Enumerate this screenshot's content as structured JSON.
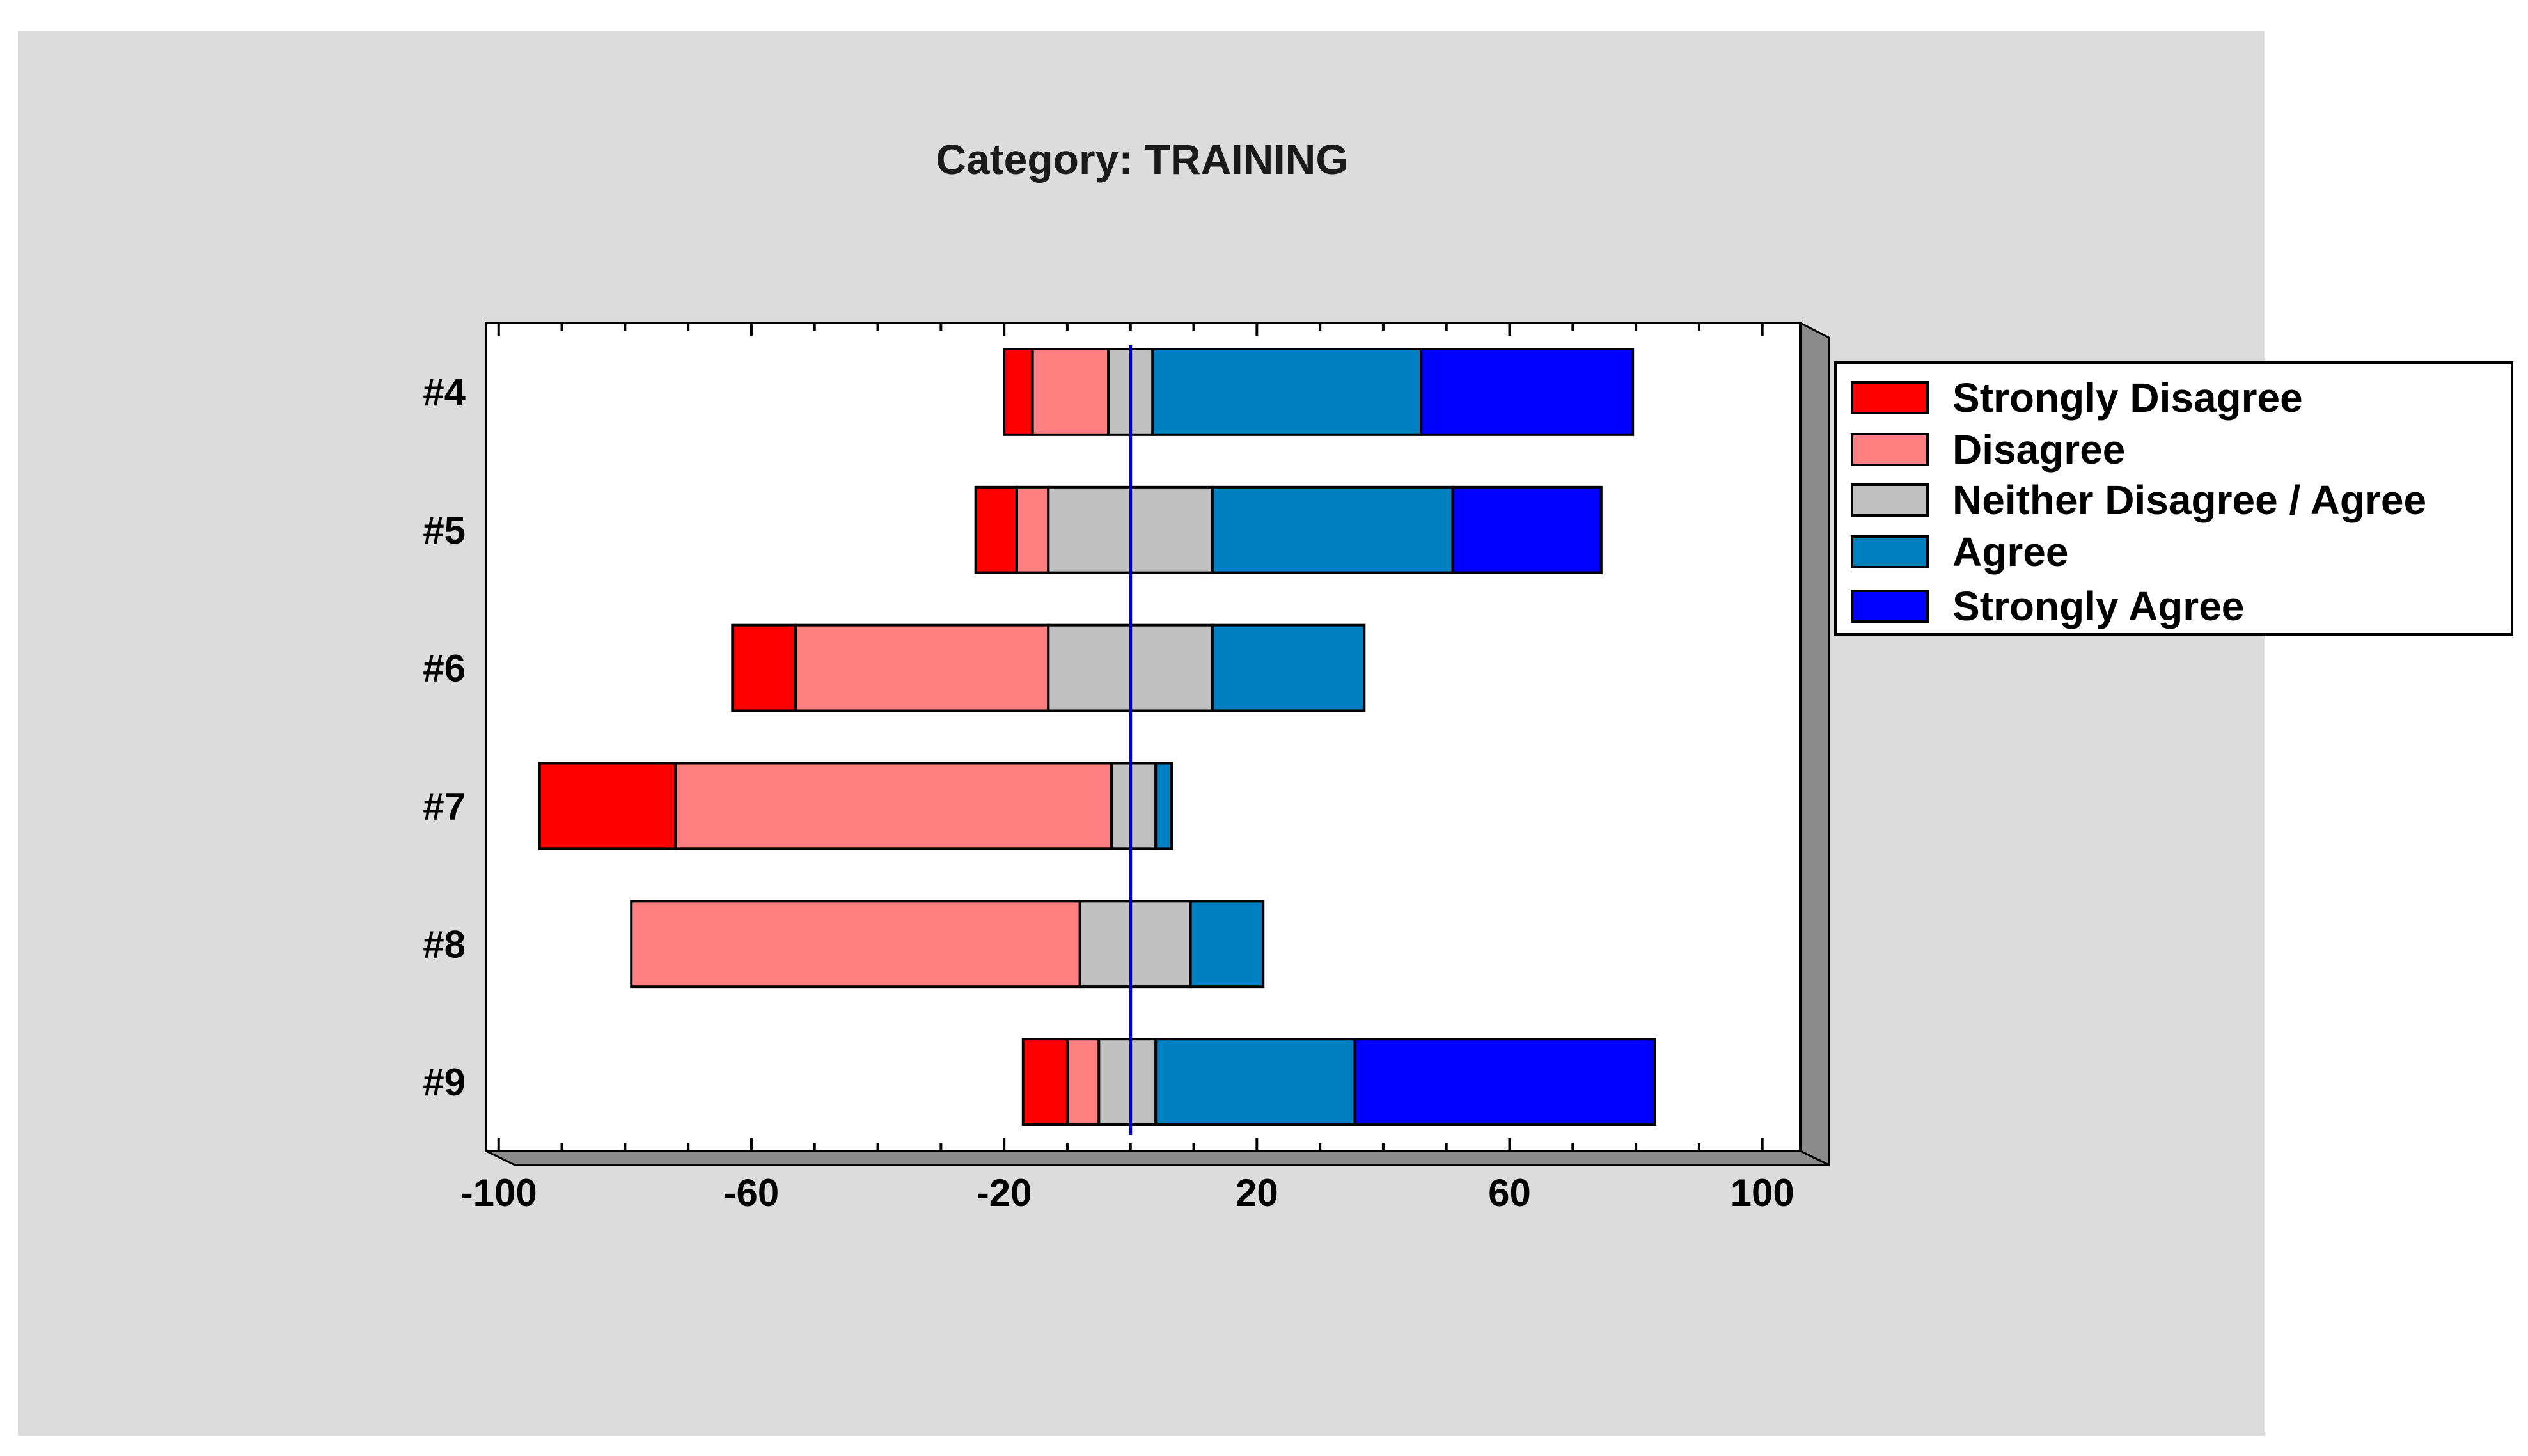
{
  "chart_data": {
    "type": "bar",
    "orientation": "horizontal",
    "stacked": "diverging",
    "title": "Category: TRAINING",
    "categories": [
      "#4",
      "#5",
      "#6",
      "#7",
      "#8",
      "#9"
    ],
    "center_line": 0,
    "xlim": [
      -102,
      106
    ],
    "xticks": [
      -100,
      -60,
      -20,
      20,
      60,
      100
    ],
    "xtick_labels": [
      "-100",
      "-60",
      "-20",
      "20",
      "60",
      "100"
    ],
    "legend_position": "right",
    "series": [
      {
        "name": "Strongly Disagree",
        "color": "#ff0000"
      },
      {
        "name": "Disagree",
        "color": "#ff8080"
      },
      {
        "name": "Neither Disagree / Agree",
        "color": "#c0c0c0"
      },
      {
        "name": "Agree",
        "color": "#0080c0"
      },
      {
        "name": "Strongly Agree",
        "color": "#0000ff"
      }
    ],
    "bars": [
      {
        "category": "#4",
        "start": -20,
        "values": [
          4.5,
          12,
          7,
          42.5,
          33.5
        ]
      },
      {
        "category": "#5",
        "start": -24.5,
        "values": [
          6.5,
          5,
          26,
          38,
          23.5
        ]
      },
      {
        "category": "#6",
        "start": -63,
        "values": [
          10,
          40,
          26,
          24,
          0
        ]
      },
      {
        "category": "#7",
        "start": -93.5,
        "values": [
          21.5,
          69,
          7,
          2.5,
          0
        ]
      },
      {
        "category": "#8",
        "start": -79,
        "values": [
          0,
          71,
          17.5,
          11.5,
          0
        ]
      },
      {
        "category": "#9",
        "start": -17,
        "values": [
          7,
          5,
          9,
          31.5,
          47.5
        ]
      }
    ]
  }
}
